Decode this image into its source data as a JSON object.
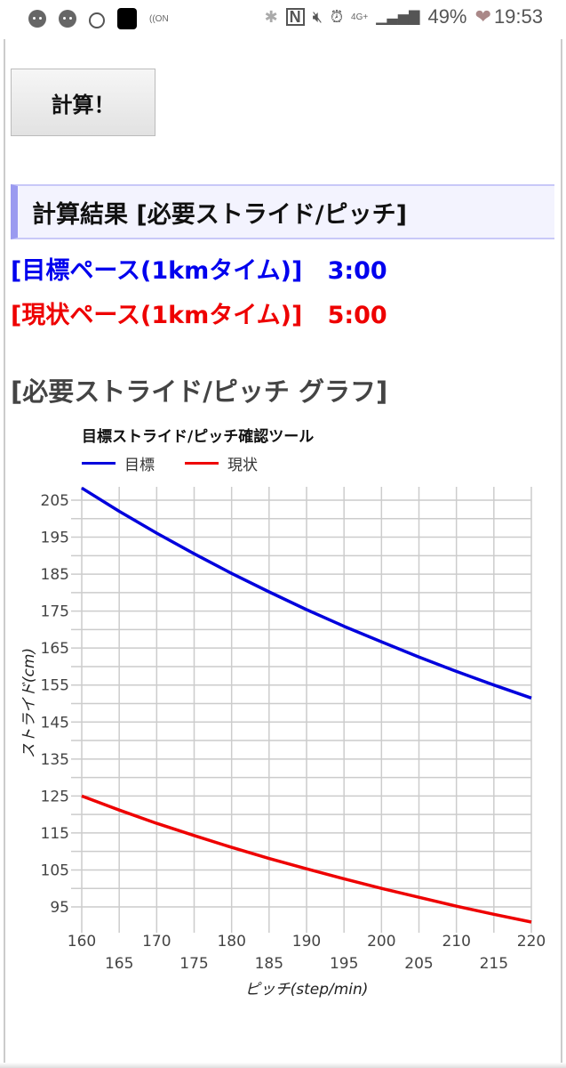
{
  "status_bar": {
    "left_icons": [
      "face-icon",
      "face-icon",
      "ring-icon",
      "black-square-icon",
      "nfc-on-icon"
    ],
    "right_icons": [
      "bluetooth-icon",
      "nfc-icon",
      "mute-icon",
      "alarm-icon",
      "4g-icon",
      "signal-icon"
    ],
    "network": "4G+",
    "battery": "49%",
    "time": "19:53"
  },
  "calc_button": {
    "label": "計算！"
  },
  "result_header": {
    "title": "計算結果 [必要ストライド/ピッチ]"
  },
  "paces": {
    "target": {
      "label": "[目標ペース(1kmタイム)]",
      "value": "3:00",
      "color": "#0000ee"
    },
    "current": {
      "label": "[現状ペース(1kmタイム)]",
      "value": "5:00",
      "color": "#ee0000"
    }
  },
  "graph_section": {
    "title": "[必要ストライド/ピッチ グラフ]"
  },
  "chart_data": {
    "type": "line",
    "title": "目標ストライド/ピッチ確認ツール",
    "xlabel": "ピッチ(step/min)",
    "ylabel": "ストライド(cm)",
    "x": [
      160,
      165,
      170,
      175,
      180,
      185,
      190,
      195,
      200,
      205,
      210,
      215,
      220
    ],
    "x_ticks_upper": [
      "160",
      "170",
      "180",
      "190",
      "200",
      "210",
      "220"
    ],
    "x_ticks_lower": [
      "165",
      "175",
      "185",
      "195",
      "205",
      "215"
    ],
    "y_ticks": [
      "205",
      "195",
      "185",
      "175",
      "165",
      "155",
      "145",
      "135",
      "125",
      "115",
      "105",
      "95"
    ],
    "xlim": [
      160,
      220
    ],
    "ylim": [
      90,
      210
    ],
    "grid": true,
    "legend_position": "top-left",
    "series": [
      {
        "name": "目標",
        "color": "#0000dd",
        "values": [
          208.3,
          202.0,
          196.1,
          190.5,
          185.2,
          180.2,
          175.4,
          170.9,
          166.7,
          162.6,
          158.7,
          155.0,
          151.5
        ]
      },
      {
        "name": "現状",
        "color": "#ee0000",
        "values": [
          125.0,
          121.2,
          117.6,
          114.3,
          111.1,
          108.1,
          105.3,
          102.6,
          100.0,
          97.6,
          95.2,
          93.0,
          90.9
        ]
      }
    ]
  }
}
